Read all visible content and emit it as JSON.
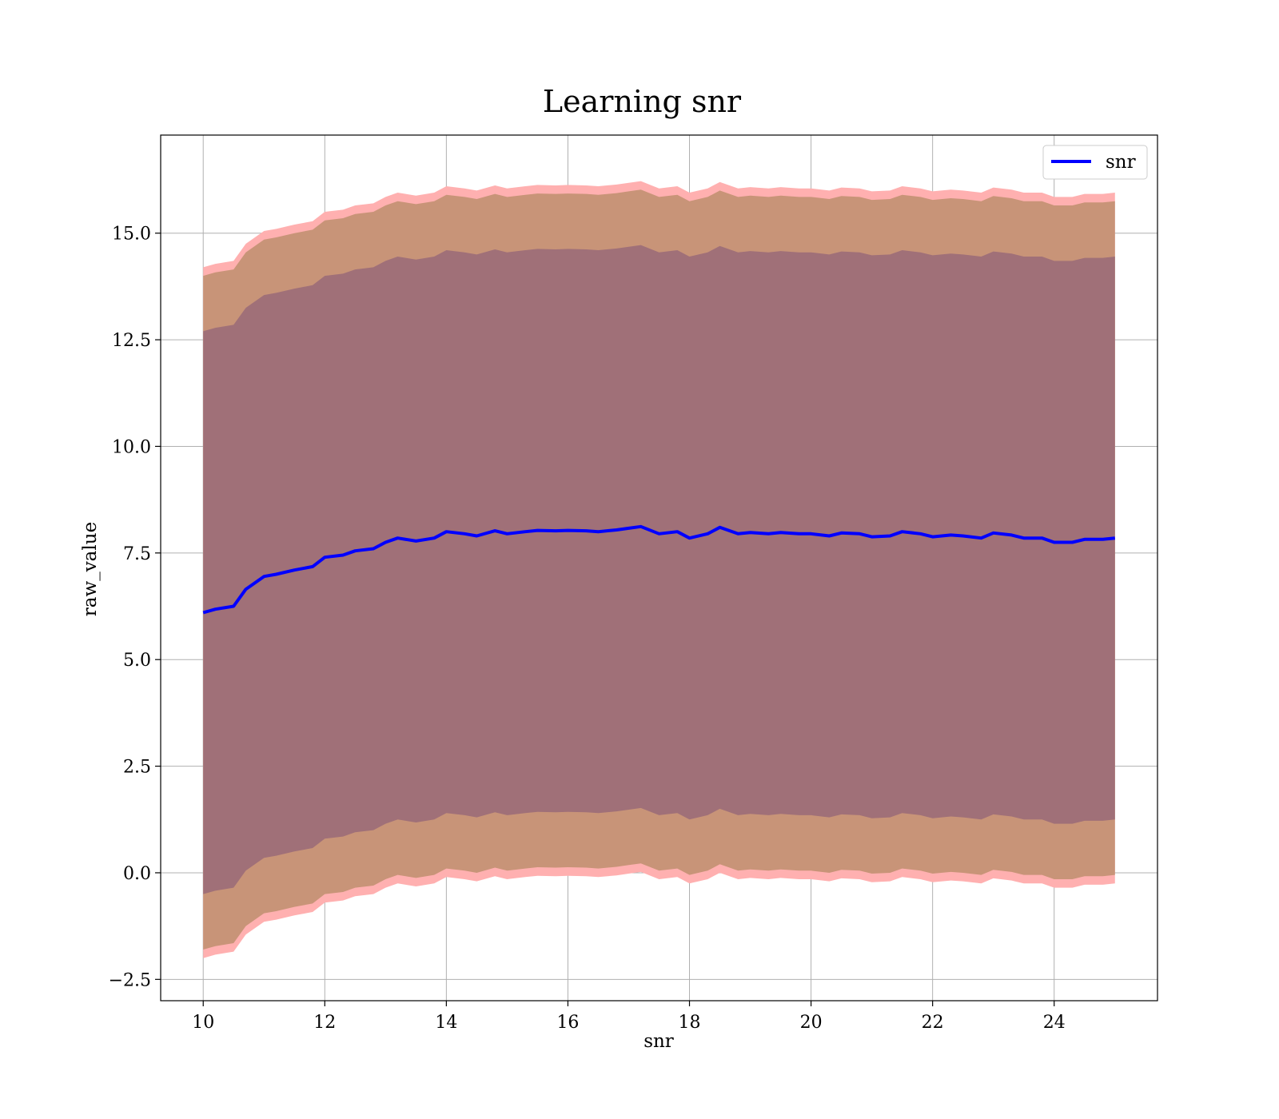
{
  "chart_data": {
    "type": "area",
    "title": "Learning snr",
    "xlabel": "snr",
    "ylabel": "raw_value",
    "xlim": [
      9.3,
      25.7
    ],
    "ylim": [
      -3.0,
      17.3
    ],
    "xticks": [
      10,
      12,
      14,
      16,
      18,
      20,
      22,
      24
    ],
    "xtick_labels": [
      "10",
      "12",
      "14",
      "16",
      "18",
      "20",
      "22",
      "24"
    ],
    "yticks": [
      -2.5,
      0.0,
      2.5,
      5.0,
      7.5,
      10.0,
      12.5,
      15.0
    ],
    "ytick_labels": [
      "−2.5",
      "0.0",
      "2.5",
      "5.0",
      "7.5",
      "10.0",
      "12.5",
      "15.0"
    ],
    "grid": true,
    "legend": {
      "position": "top-right",
      "entries": [
        "snr"
      ]
    },
    "colors": {
      "line": "#0000ff",
      "outer_band": "#ffb0b0",
      "middle_band": "#c89478",
      "inner_band": "#a07078",
      "grid": "#b0b0b0"
    },
    "x": [
      10.0,
      10.2,
      10.5,
      10.7,
      11.0,
      11.2,
      11.5,
      11.8,
      12.0,
      12.3,
      12.5,
      12.8,
      13.0,
      13.2,
      13.5,
      13.8,
      14.0,
      14.3,
      14.5,
      14.8,
      15.0,
      15.3,
      15.5,
      15.8,
      16.0,
      16.3,
      16.5,
      16.8,
      17.0,
      17.2,
      17.5,
      17.8,
      18.0,
      18.3,
      18.5,
      18.8,
      19.0,
      19.3,
      19.5,
      19.8,
      20.0,
      20.3,
      20.5,
      20.8,
      21.0,
      21.3,
      21.5,
      21.8,
      22.0,
      22.3,
      22.5,
      22.8,
      23.0,
      23.3,
      23.5,
      23.8,
      24.0,
      24.3,
      24.5,
      24.8,
      25.0
    ],
    "series": [
      {
        "name": "snr",
        "values": [
          6.1,
          6.18,
          6.25,
          6.65,
          6.95,
          7.0,
          7.1,
          7.18,
          7.4,
          7.45,
          7.55,
          7.6,
          7.75,
          7.85,
          7.78,
          7.85,
          8.0,
          7.95,
          7.9,
          8.02,
          7.95,
          8.0,
          8.03,
          8.02,
          8.03,
          8.02,
          8.0,
          8.04,
          8.08,
          8.12,
          7.95,
          8.0,
          7.85,
          7.95,
          8.1,
          7.95,
          7.98,
          7.95,
          7.98,
          7.95,
          7.95,
          7.9,
          7.97,
          7.95,
          7.88,
          7.9,
          8.0,
          7.95,
          7.88,
          7.92,
          7.9,
          7.85,
          7.97,
          7.92,
          7.85,
          7.85,
          7.75,
          7.75,
          7.82,
          7.82,
          7.85
        ]
      }
    ],
    "band_half_widths": {
      "inner": 6.6,
      "middle": 7.9,
      "outer": 8.1
    }
  }
}
